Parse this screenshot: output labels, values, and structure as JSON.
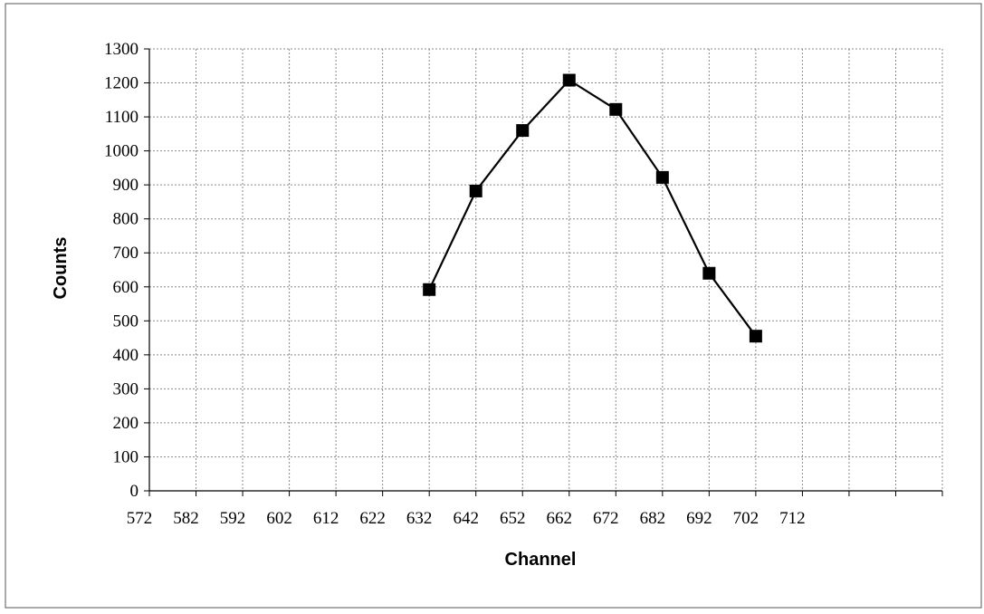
{
  "chart_data": {
    "type": "line",
    "title": "",
    "xlabel": "Channel",
    "ylabel": "Counts",
    "x_ticks": [
      "572",
      "582",
      "592",
      "602",
      "612",
      "622",
      "632",
      "642",
      "652",
      "662",
      "672",
      "682",
      "692",
      "702",
      "712"
    ],
    "y_ticks": [
      "0",
      "100",
      "200",
      "300",
      "400",
      "500",
      "600",
      "700",
      "800",
      "900",
      "1000",
      "1100",
      "1200",
      "1300"
    ],
    "xlim": [
      572,
      742
    ],
    "ylim": [
      0,
      1300
    ],
    "grid": true,
    "legend": "none",
    "series": [
      {
        "x": [
          632,
          642,
          652,
          662,
          672,
          682,
          692,
          702
        ],
        "y": [
          592,
          882,
          1060,
          1208,
          1122,
          922,
          640,
          455
        ],
        "marker": "square",
        "color": "#000000"
      }
    ]
  }
}
